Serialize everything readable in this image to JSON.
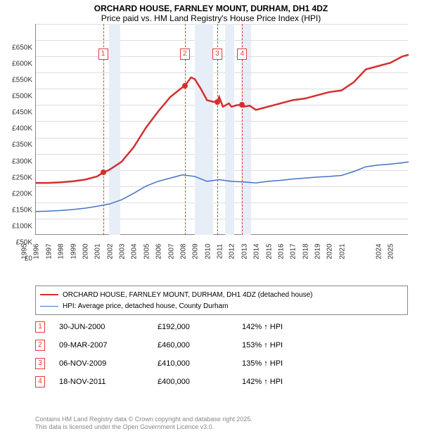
{
  "title1": "ORCHARD HOUSE, FARNLEY MOUNT, DURHAM, DH1 4DZ",
  "title2": "Price paid vs. HM Land Registry's House Price Index (HPI)",
  "chart": {
    "type": "line",
    "xlim": [
      1995,
      2025.5
    ],
    "ylim": [
      0,
      650000
    ],
    "ytick_step": 50000,
    "yticklabels": [
      "£0",
      "£50K",
      "£100K",
      "£150K",
      "£200K",
      "£250K",
      "£300K",
      "£350K",
      "£400K",
      "£450K",
      "£500K",
      "£550K",
      "£600K",
      "£650K"
    ],
    "xticks": [
      1995,
      1996,
      1997,
      1998,
      1999,
      2000,
      2001,
      2002,
      2003,
      2004,
      2005,
      2006,
      2007,
      2008,
      2009,
      2010,
      2011,
      2012,
      2013,
      2014,
      2015,
      2016,
      2017,
      2018,
      2019,
      2020,
      2021,
      2024,
      2025
    ],
    "grid_color": "#dddddd",
    "background_color": "#ffffff",
    "shade_color": "#e8eef7",
    "shade_bands": [
      {
        "start": 2001.0,
        "end": 2001.9
      },
      {
        "start": 2008.0,
        "end": 2009.5
      },
      {
        "start": 2010.5,
        "end": 2011.2
      },
      {
        "start": 2011.8,
        "end": 2012.6
      }
    ],
    "series": [
      {
        "name": "ORCHARD HOUSE, FARNLEY MOUNT, DURHAM, DH1 4DZ (detached house)",
        "color": "#d32f2f",
        "line_width": 2.5,
        "points": [
          [
            1995,
            160000
          ],
          [
            1996,
            160000
          ],
          [
            1997,
            162000
          ],
          [
            1998,
            165000
          ],
          [
            1999,
            170000
          ],
          [
            2000,
            180000
          ],
          [
            2000.5,
            192000
          ],
          [
            2001,
            200000
          ],
          [
            2002,
            225000
          ],
          [
            2003,
            270000
          ],
          [
            2004,
            330000
          ],
          [
            2005,
            380000
          ],
          [
            2006,
            425000
          ],
          [
            2007,
            455000
          ],
          [
            2007.2,
            460000
          ],
          [
            2007.7,
            485000
          ],
          [
            2008,
            480000
          ],
          [
            2008.5,
            450000
          ],
          [
            2009,
            415000
          ],
          [
            2009.5,
            410000
          ],
          [
            2009.85,
            410000
          ],
          [
            2010,
            425000
          ],
          [
            2010.3,
            395000
          ],
          [
            2010.8,
            405000
          ],
          [
            2011,
            395000
          ],
          [
            2011.5,
            400000
          ],
          [
            2011.88,
            400000
          ],
          [
            2012,
            395000
          ],
          [
            2012.5,
            398000
          ],
          [
            2013,
            385000
          ],
          [
            2013.5,
            390000
          ],
          [
            2014,
            395000
          ],
          [
            2015,
            405000
          ],
          [
            2016,
            415000
          ],
          [
            2017,
            420000
          ],
          [
            2018,
            430000
          ],
          [
            2019,
            440000
          ],
          [
            2020,
            445000
          ],
          [
            2021,
            470000
          ],
          [
            2022,
            510000
          ],
          [
            2023,
            520000
          ],
          [
            2024,
            530000
          ],
          [
            2025,
            550000
          ],
          [
            2025.5,
            555000
          ]
        ]
      },
      {
        "name": "HPI: Average price, detached house, County Durham",
        "color": "#4472c4",
        "line_width": 1.5,
        "points": [
          [
            1995,
            72000
          ],
          [
            1996,
            73000
          ],
          [
            1997,
            75000
          ],
          [
            1998,
            78000
          ],
          [
            1999,
            82000
          ],
          [
            2000,
            88000
          ],
          [
            2001,
            95000
          ],
          [
            2002,
            108000
          ],
          [
            2003,
            128000
          ],
          [
            2004,
            150000
          ],
          [
            2005,
            165000
          ],
          [
            2006,
            175000
          ],
          [
            2007,
            185000
          ],
          [
            2008,
            180000
          ],
          [
            2009,
            165000
          ],
          [
            2010,
            170000
          ],
          [
            2011,
            165000
          ],
          [
            2012,
            163000
          ],
          [
            2013,
            160000
          ],
          [
            2014,
            165000
          ],
          [
            2015,
            168000
          ],
          [
            2016,
            172000
          ],
          [
            2017,
            175000
          ],
          [
            2018,
            178000
          ],
          [
            2019,
            180000
          ],
          [
            2020,
            183000
          ],
          [
            2021,
            195000
          ],
          [
            2022,
            210000
          ],
          [
            2023,
            215000
          ],
          [
            2024,
            218000
          ],
          [
            2025,
            222000
          ],
          [
            2025.5,
            225000
          ]
        ]
      }
    ],
    "event_markers": [
      {
        "n": "1",
        "x": 2000.5,
        "y": 192000,
        "box_y": 575000
      },
      {
        "n": "2",
        "x": 2007.19,
        "y": 460000,
        "box_y": 575000
      },
      {
        "n": "3",
        "x": 2009.85,
        "y": 410000,
        "box_y": 575000
      },
      {
        "n": "4",
        "x": 2011.88,
        "y": 400000,
        "box_y": 575000
      }
    ],
    "marker_dot_color": "#d32f2f",
    "dash_color": "#e53935"
  },
  "legend": {
    "items": [
      {
        "label": "ORCHARD HOUSE, FARNLEY MOUNT, DURHAM, DH1 4DZ (detached house)",
        "color": "#d32f2f",
        "width": 2.5
      },
      {
        "label": "HPI: Average price, detached house, County Durham",
        "color": "#4472c4",
        "width": 1.5
      }
    ]
  },
  "events": [
    {
      "n": "1",
      "date": "30-JUN-2000",
      "price": "£192,000",
      "pct": "142% ↑ HPI"
    },
    {
      "n": "2",
      "date": "09-MAR-2007",
      "price": "£460,000",
      "pct": "153% ↑ HPI"
    },
    {
      "n": "3",
      "date": "06-NOV-2009",
      "price": "£410,000",
      "pct": "135% ↑ HPI"
    },
    {
      "n": "4",
      "date": "18-NOV-2011",
      "price": "£400,000",
      "pct": "142% ↑ HPI"
    }
  ],
  "footer1": "Contains HM Land Registry data © Crown copyright and database right 2025.",
  "footer2": "This data is licensed under the Open Government Licence v3.0."
}
